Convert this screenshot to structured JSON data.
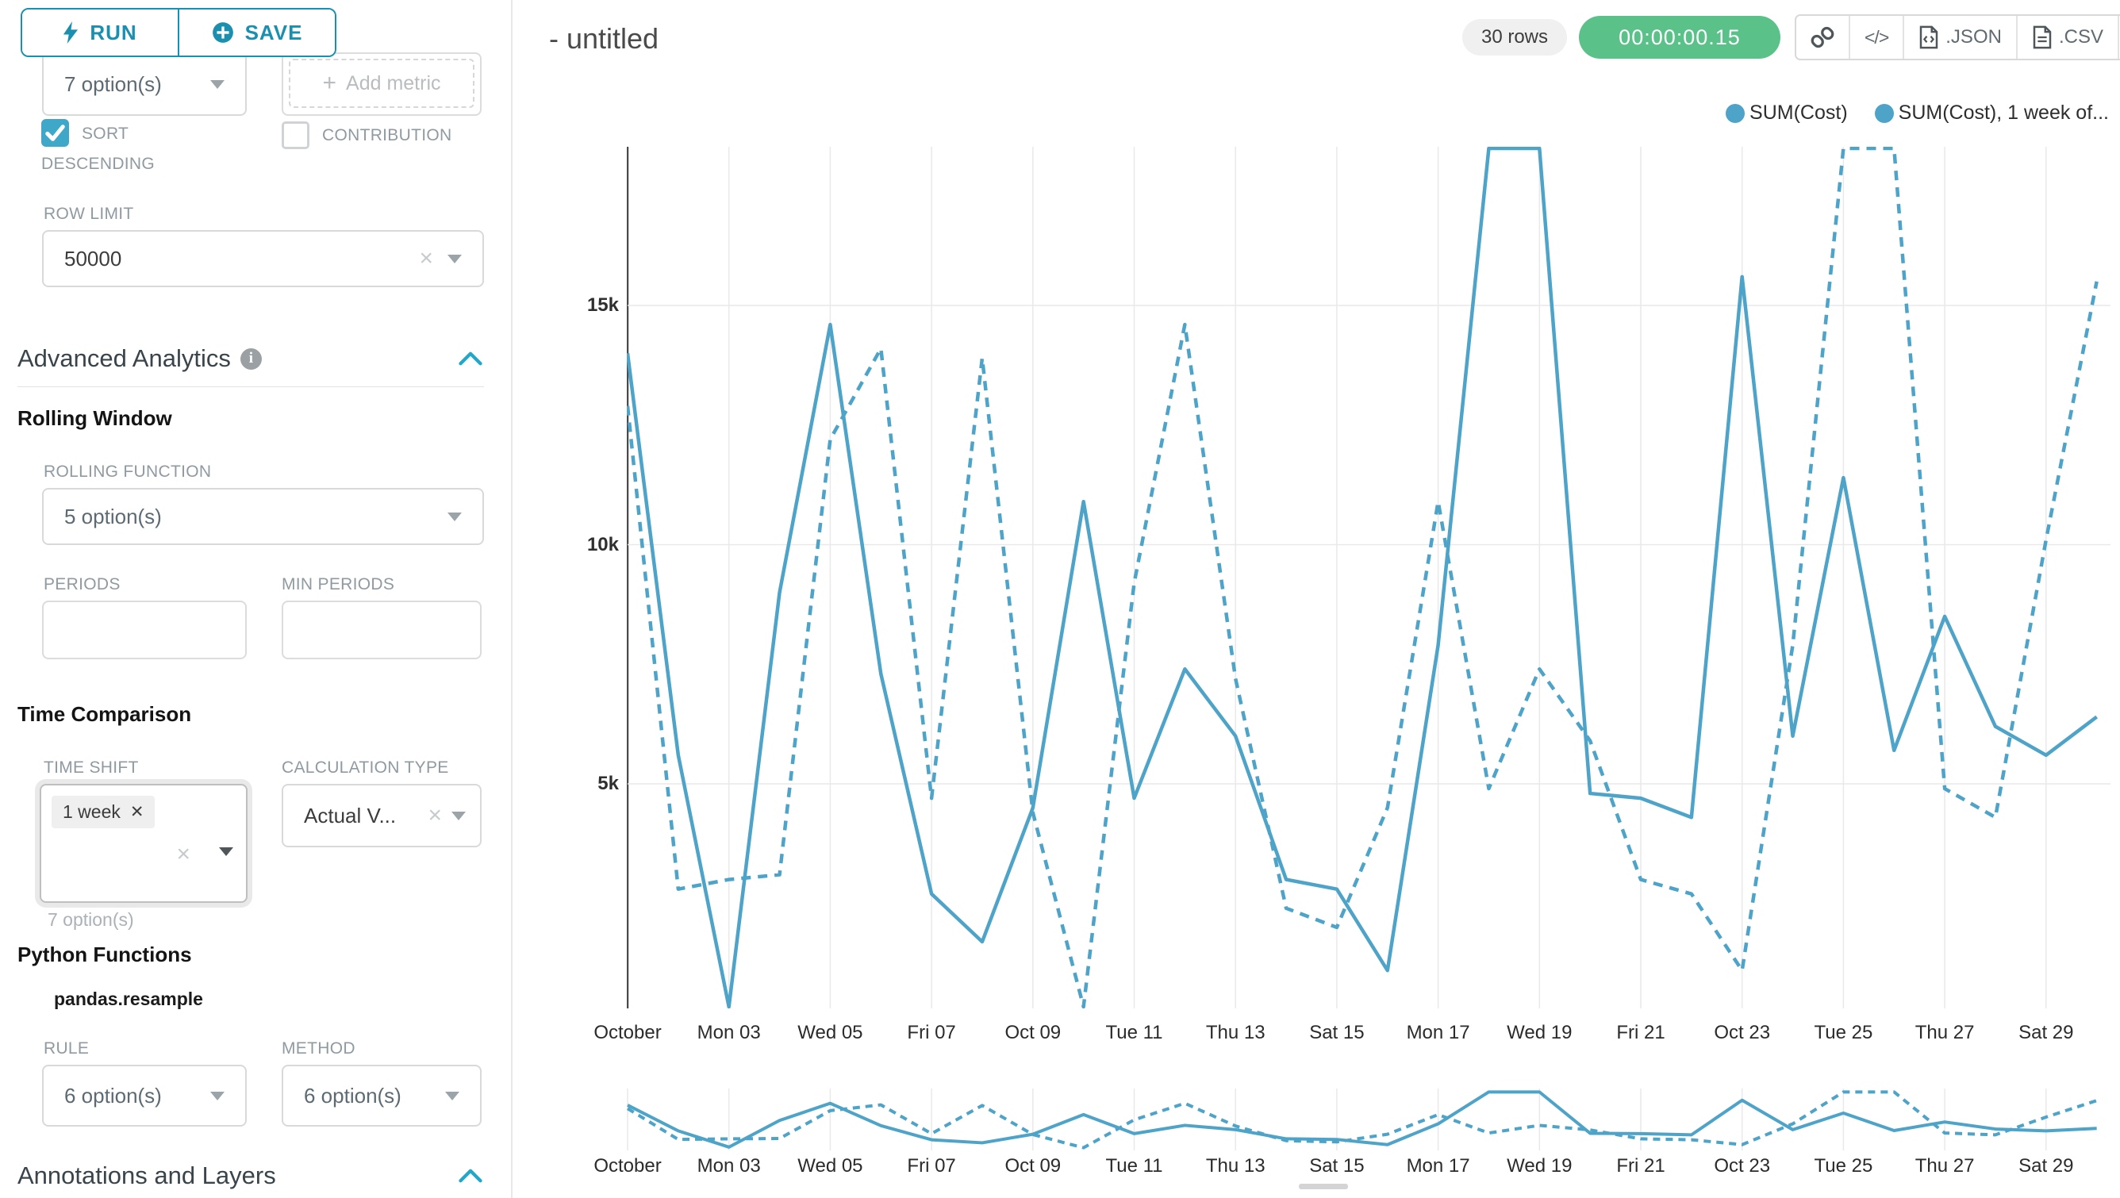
{
  "colors": {
    "accent_teal": "#1b8fae",
    "checkbox_teal": "#3fa8c9",
    "chevron_teal": "#20a7c9",
    "line_blue": "#4da3c8",
    "success_green": "#5ac189",
    "badge_gray_bg": "#f0f0f0",
    "border_gray": "#d9d9d9",
    "grid_gray": "#e9e9e9",
    "axis_dark": "#4a4a4a"
  },
  "sidebar": {
    "run_label": "RUN",
    "save_label": "SAVE",
    "metric_select_value": "7 option(s)",
    "add_metric_label": "Add metric",
    "sort_descending_label": "SORT DESCENDING",
    "contribution_label": "CONTRIBUTION",
    "row_limit_label": "ROW LIMIT",
    "row_limit_value": "50000",
    "advanced_analytics_label": "Advanced Analytics",
    "rolling_window_label": "Rolling Window",
    "rolling_function_label": "ROLLING FUNCTION",
    "rolling_function_value": "5 option(s)",
    "periods_label": "PERIODS",
    "min_periods_label": "MIN PERIODS",
    "time_comparison_label": "Time Comparison",
    "time_shift_label": "TIME SHIFT",
    "time_shift_tag": "1 week",
    "time_shift_helper": "7 option(s)",
    "calculation_type_label": "CALCULATION TYPE",
    "calculation_type_value": "Actual V...",
    "python_functions_label": "Python Functions",
    "pandas_resample_label": "pandas.resample",
    "rule_label": "RULE",
    "rule_value": "6 option(s)",
    "method_label": "METHOD",
    "method_value": "6 option(s)",
    "annotations_label": "Annotations and Layers"
  },
  "header": {
    "title": "- untitled",
    "rows_badge": "30 rows",
    "timer_badge": "00:00:00.15",
    "json_label": ".JSON",
    "csv_label": ".CSV"
  },
  "legend": [
    {
      "label": "SUM(Cost)"
    },
    {
      "label": "SUM(Cost), 1 week of..."
    }
  ],
  "chart_data": {
    "type": "line",
    "title": "- untitled",
    "x_tick_labels": [
      "October",
      "Mon 03",
      "Wed 05",
      "Fri 07",
      "Oct 09",
      "Tue 11",
      "Thu 13",
      "Sat 15",
      "Mon 17",
      "Wed 19",
      "Fri 21",
      "Oct 23",
      "Tue 25",
      "Thu 27",
      "Sat 29"
    ],
    "y_tick_labels": [
      "15k",
      "10k",
      "5k"
    ],
    "ylabel": "",
    "xlabel": "",
    "ylim": [
      0,
      18600
    ],
    "grid": true,
    "legend_position": "top-right",
    "has_range_preview_strip": true,
    "line_color": "#4da3c8",
    "x_days_of_october": [
      1,
      2,
      3,
      4,
      5,
      6,
      7,
      8,
      9,
      10,
      11,
      12,
      13,
      14,
      15,
      16,
      17,
      18,
      19,
      20,
      21,
      22,
      23,
      24,
      25,
      26,
      27,
      28,
      29,
      30
    ],
    "series": [
      {
        "name": "SUM(Cost)",
        "line_style": "solid",
        "values": [
          14000,
          5600,
          300,
          9000,
          14600,
          7300,
          2700,
          1700,
          4500,
          10900,
          4700,
          7400,
          6000,
          3000,
          2800,
          1100,
          7900,
          18300,
          18300,
          4800,
          4700,
          4300,
          15600,
          6000,
          11400,
          5700,
          8500,
          6200,
          5600,
          6400
        ]
      },
      {
        "name": "SUM(Cost), 1 week of...",
        "line_style": "dashed",
        "values": [
          12900,
          2800,
          3000,
          3100,
          12200,
          14100,
          4700,
          13900,
          4400,
          100,
          9200,
          14600,
          7200,
          2400,
          2000,
          4500,
          10900,
          4900,
          7400,
          5900,
          3000,
          2700,
          1100,
          7900,
          18300,
          18300,
          4900,
          4300,
          10100,
          15500
        ]
      }
    ]
  }
}
